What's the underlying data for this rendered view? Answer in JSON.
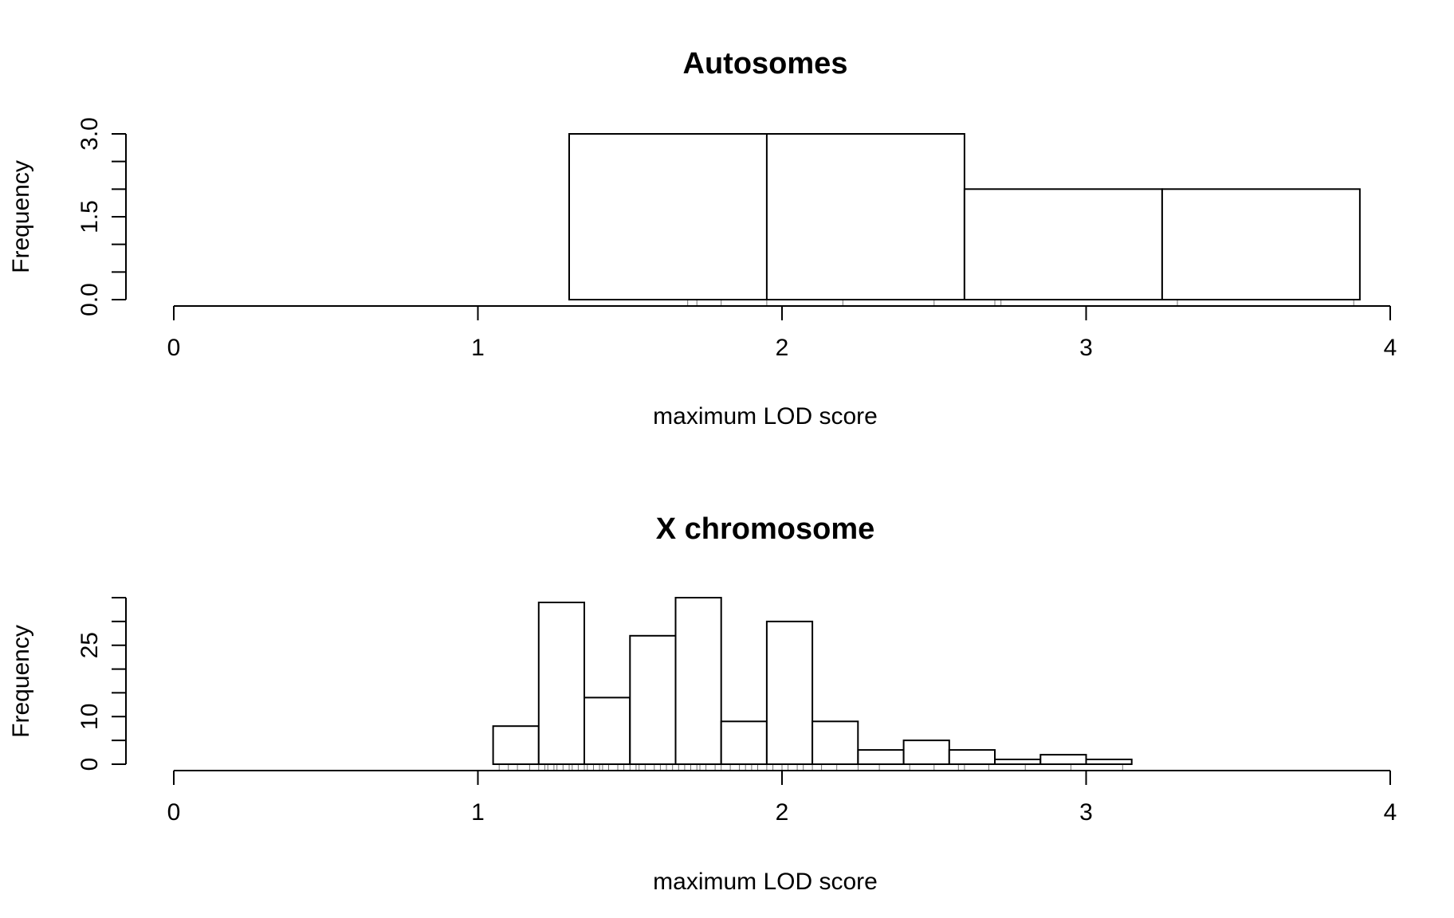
{
  "figure": {
    "colors": {
      "stroke": "#000000",
      "fill": "#ffffff",
      "background": "#ffffff"
    }
  },
  "chart_data": [
    {
      "type": "bar",
      "title": "Autosomes",
      "xlabel": "maximum LOD score",
      "ylabel": "Frequency",
      "xlim": [
        0,
        4
      ],
      "ylim": [
        0,
        3
      ],
      "x_ticks": [
        "0",
        "1",
        "2",
        "3",
        "4"
      ],
      "y_ticks": [
        "0.0",
        "1.5",
        "3.0"
      ],
      "bins": [
        {
          "x0": 0.0,
          "x1": 1.3,
          "count": 0
        },
        {
          "x0": 1.3,
          "x1": 1.95,
          "count": 3
        },
        {
          "x0": 1.95,
          "x1": 2.6,
          "count": 3
        },
        {
          "x0": 2.6,
          "x1": 3.25,
          "count": 2
        },
        {
          "x0": 3.25,
          "x1": 3.9,
          "count": 2
        }
      ],
      "rug": [
        1.69,
        1.72,
        1.8,
        1.95,
        2.2,
        2.5,
        2.7,
        2.72,
        3.3,
        3.88
      ],
      "grid": false,
      "legend": "none"
    },
    {
      "type": "bar",
      "title": "X chromosome",
      "xlabel": "maximum LOD score",
      "ylabel": "Frequency",
      "xlim": [
        0,
        4
      ],
      "ylim": [
        0,
        35
      ],
      "x_ticks": [
        "0",
        "1",
        "2",
        "3",
        "4"
      ],
      "y_ticks": [
        "0",
        "10",
        "25"
      ],
      "y_minor_ticks": [
        5,
        15,
        20,
        30,
        35
      ],
      "bins": [
        {
          "x0": 0.0,
          "x1": 1.05,
          "count": 0
        },
        {
          "x0": 1.05,
          "x1": 1.2,
          "count": 8
        },
        {
          "x0": 1.2,
          "x1": 1.35,
          "count": 34
        },
        {
          "x0": 1.35,
          "x1": 1.5,
          "count": 14
        },
        {
          "x0": 1.5,
          "x1": 1.65,
          "count": 27
        },
        {
          "x0": 1.65,
          "x1": 1.8,
          "count": 35
        },
        {
          "x0": 1.8,
          "x1": 1.95,
          "count": 9
        },
        {
          "x0": 1.95,
          "x1": 2.1,
          "count": 30
        },
        {
          "x0": 2.1,
          "x1": 2.25,
          "count": 9
        },
        {
          "x0": 2.25,
          "x1": 2.4,
          "count": 3
        },
        {
          "x0": 2.4,
          "x1": 2.55,
          "count": 5
        },
        {
          "x0": 2.55,
          "x1": 2.7,
          "count": 3
        },
        {
          "x0": 2.7,
          "x1": 2.85,
          "count": 1
        },
        {
          "x0": 2.85,
          "x1": 3.0,
          "count": 2
        },
        {
          "x0": 3.0,
          "x1": 3.15,
          "count": 1
        },
        {
          "x0": 3.15,
          "x1": 3.9,
          "count": 0
        }
      ],
      "rug": [
        1.07,
        1.1,
        1.13,
        1.17,
        1.2,
        1.22,
        1.23,
        1.25,
        1.26,
        1.28,
        1.3,
        1.31,
        1.33,
        1.35,
        1.36,
        1.38,
        1.4,
        1.41,
        1.43,
        1.46,
        1.48,
        1.5,
        1.52,
        1.53,
        1.55,
        1.58,
        1.6,
        1.62,
        1.64,
        1.66,
        1.68,
        1.7,
        1.72,
        1.73,
        1.75,
        1.78,
        1.8,
        1.83,
        1.86,
        1.88,
        1.9,
        1.92,
        1.95,
        1.97,
        2.0,
        2.02,
        2.05,
        2.07,
        2.1,
        2.13,
        2.18,
        2.25,
        2.32,
        2.42,
        2.5,
        2.58,
        2.6,
        2.68,
        2.8,
        2.95,
        3.12
      ]
    }
  ]
}
